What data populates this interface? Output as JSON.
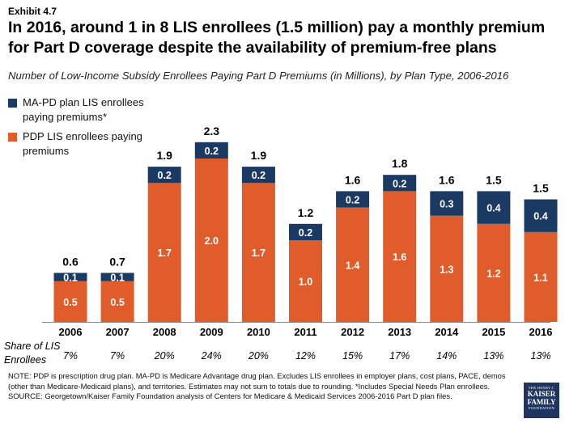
{
  "exhibit": "Exhibit 4.7",
  "title": "In 2016, around 1 in 8 LIS enrollees (1.5 million) pay a monthly premium for Part D coverage despite the availability of premium-free plans",
  "subtitle": "Number of Low-Income Subsidy Enrollees Paying Part D Premiums (in Millions), by Plan Type, 2006-2016",
  "legend": {
    "ma": "MA-PD plan LIS enrollees paying premiums*",
    "pdp": "PDP LIS enrollees paying premiums"
  },
  "share_header": "Share of LIS Enrollees",
  "notes": "NOTE: PDP is prescription drug plan. MA-PD is Medicare Advantage drug plan. Excludes LIS enrollees in employer plans, cost plans, PACE, demos (other than Medicare-Medicaid plans), and territories. Estimates may not sum to totals due to rounding. *Includes Special Needs Plan enrollees.",
  "source": "SOURCE: Georgetown/Kaiser Family Foundation analysis of Centers for Medicare & Medicaid Services 2006-2016 Part D plan files.",
  "logo": {
    "line1": "THE HENRY J.",
    "line2a": "KAISER",
    "line2b": "FAMILY",
    "line3": "FOUNDATION"
  },
  "chart_data": {
    "type": "bar",
    "stacked": true,
    "categories": [
      "2006",
      "2007",
      "2008",
      "2009",
      "2010",
      "2011",
      "2012",
      "2013",
      "2014",
      "2015",
      "2016"
    ],
    "series": [
      {
        "name": "PDP LIS enrollees paying premiums",
        "color": "#e05c2a",
        "values": [
          0.5,
          0.5,
          1.7,
          2.0,
          1.7,
          1.0,
          1.4,
          1.6,
          1.3,
          1.2,
          1.1
        ]
      },
      {
        "name": "MA-PD plan LIS enrollees paying premiums*",
        "color": "#1b3a63",
        "values": [
          0.1,
          0.1,
          0.2,
          0.2,
          0.2,
          0.2,
          0.2,
          0.2,
          0.3,
          0.4,
          0.4
        ]
      }
    ],
    "totals": [
      0.6,
      0.7,
      1.9,
      2.3,
      1.9,
      1.2,
      1.6,
      1.8,
      1.6,
      1.5,
      1.5
    ],
    "shares": [
      "7%",
      "7%",
      "20%",
      "24%",
      "20%",
      "12%",
      "15%",
      "17%",
      "14%",
      "13%",
      "13%"
    ],
    "ylim": [
      0,
      2.3
    ],
    "grid": false,
    "legend_position": "top-left"
  }
}
